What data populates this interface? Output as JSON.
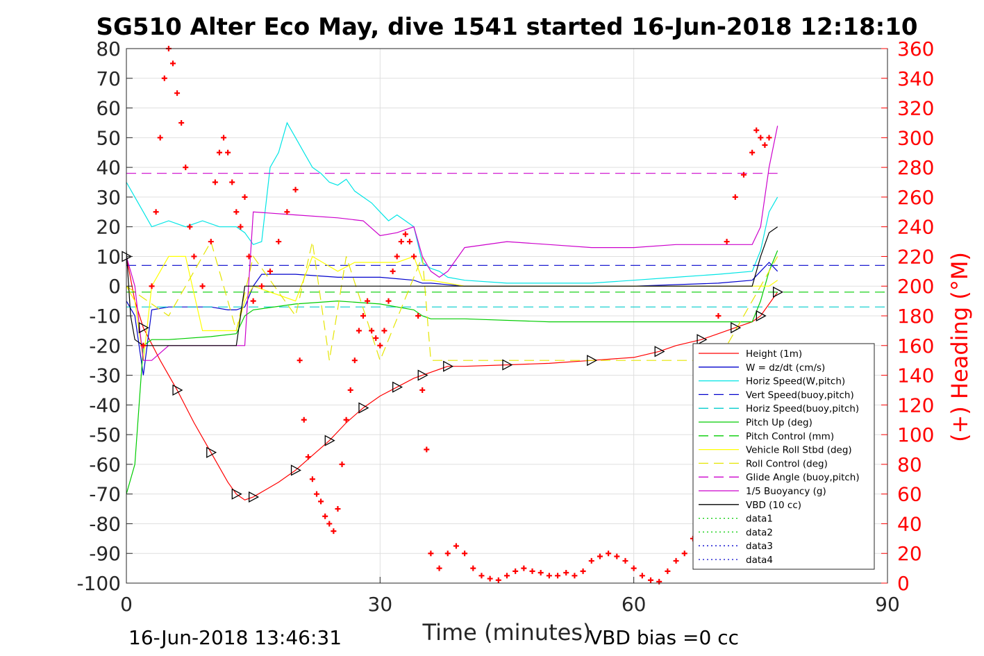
{
  "chart_data": {
    "type": "line",
    "title": "SG510 Alter Eco May, dive 1541 started 16-Jun-2018 12:18:10",
    "xlabel": "Time (minutes)",
    "ylabel_right": "(+) Heading (°M)",
    "xlim": [
      0,
      90
    ],
    "ylim": [
      -100,
      80
    ],
    "ylim_right": [
      0,
      360
    ],
    "xticks": [
      "0",
      "30",
      "60",
      "90"
    ],
    "yticks": [
      "80",
      "70",
      "60",
      "50",
      "40",
      "30",
      "20",
      "10",
      "0",
      "-10",
      "-20",
      "-30",
      "-40",
      "-50",
      "-60",
      "-70",
      "-80",
      "-90",
      "-100"
    ],
    "yticks_right": [
      "360",
      "340",
      "320",
      "300",
      "280",
      "260",
      "240",
      "220",
      "200",
      "180",
      "160",
      "140",
      "120",
      "100",
      "80",
      "60",
      "40",
      "20",
      "0"
    ],
    "grid": true,
    "legend_position": "bottom-right",
    "footer_left": "16-Jun-2018 13:46:31",
    "footer_right": "VBD bias =0 cc",
    "colors": {
      "height": "#ff0000",
      "w": "#0000cc",
      "horiz": "#00e5e5",
      "vert_buoy": "#0000cc",
      "horiz_buoy": "#00cccc",
      "pitch": "#00cc00",
      "pitch_ctrl": "#00cc00",
      "roll": "#ffff00",
      "roll_ctrl": "#e5e500",
      "glide": "#cc00cc",
      "buoy": "#cc00cc",
      "vbd": "#000000",
      "heading": "#ff0000",
      "right_axis": "#ff0000"
    },
    "legend": [
      {
        "key": "height",
        "label": "Height (1m)",
        "style": "solid",
        "color": "#ff0000"
      },
      {
        "key": "w",
        "label": "W = dz/dt (cm/s)",
        "style": "solid",
        "color": "#0000cc"
      },
      {
        "key": "horiz",
        "label": "Horiz Speed(W,pitch)",
        "style": "solid",
        "color": "#00e5e5"
      },
      {
        "key": "vert_buoy",
        "label": "Vert Speed(buoy,pitch)",
        "style": "dashed",
        "color": "#0000cc"
      },
      {
        "key": "horiz_buoy",
        "label": "Horiz Speed(buoy,pitch)",
        "style": "dashed",
        "color": "#00cccc"
      },
      {
        "key": "pitch",
        "label": "Pitch Up (deg)",
        "style": "solid",
        "color": "#00cc00"
      },
      {
        "key": "pitch_ctrl",
        "label": "Pitch Control (mm)",
        "style": "dashed",
        "color": "#00cc00"
      },
      {
        "key": "roll",
        "label": "Vehicle Roll Stbd (deg)",
        "style": "solid",
        "color": "#ffff00"
      },
      {
        "key": "roll_ctrl",
        "label": "Roll Control (deg)",
        "style": "dashed",
        "color": "#e5e500"
      },
      {
        "key": "glide",
        "label": "Glide Angle (buoy,pitch)",
        "style": "dashed",
        "color": "#cc00cc"
      },
      {
        "key": "buoy",
        "label": "1/5 Buoyancy (g)",
        "style": "solid",
        "color": "#cc00cc"
      },
      {
        "key": "vbd",
        "label": "VBD (10 cc)",
        "style": "solid",
        "color": "#000000"
      },
      {
        "key": "data1",
        "label": "data1",
        "style": "dotted",
        "color": "#00cc00"
      },
      {
        "key": "data2",
        "label": "data2",
        "style": "dotted",
        "color": "#00cc00"
      },
      {
        "key": "data3",
        "label": "data3",
        "style": "dotted",
        "color": "#0000cc"
      },
      {
        "key": "data4",
        "label": "data4",
        "style": "dotted",
        "color": "#0000cc"
      }
    ],
    "series": [
      {
        "key": "height",
        "x": [
          0,
          1,
          2,
          4,
          6,
          8,
          10,
          12,
          13,
          14,
          15,
          18,
          20,
          22,
          24,
          26,
          28,
          30,
          32,
          34,
          35,
          36,
          38,
          40,
          45,
          50,
          55,
          60,
          63,
          65,
          68,
          70,
          72,
          74,
          75,
          76,
          77
        ],
        "y": [
          10,
          -5,
          -14,
          -25,
          -35,
          -46,
          -56,
          -66,
          -70,
          -72,
          -71,
          -66,
          -62,
          -57,
          -52,
          -46,
          -41,
          -37,
          -34,
          -31,
          -30,
          -29,
          -27,
          -27,
          -26.5,
          -26,
          -25,
          -24,
          -22,
          -20,
          -18,
          -16,
          -14,
          -12,
          -10,
          -6,
          -2
        ]
      },
      {
        "key": "w",
        "x": [
          0,
          1,
          2,
          3,
          5,
          8,
          10,
          12,
          13,
          14,
          15,
          16,
          20,
          25,
          30,
          34,
          35,
          36,
          40,
          50,
          60,
          70,
          74,
          75,
          76,
          77
        ],
        "y": [
          -5,
          -10,
          -30,
          -8,
          -7,
          -7,
          -7,
          -8,
          -8,
          -7,
          0,
          4,
          4,
          3,
          3,
          2,
          1,
          1,
          0,
          0,
          0,
          1,
          2,
          5,
          8,
          5
        ]
      },
      {
        "key": "horiz",
        "x": [
          0,
          1,
          2,
          3,
          5,
          7,
          9,
          11,
          13,
          14,
          15,
          16,
          17,
          18,
          19,
          20,
          21,
          22,
          23,
          24,
          25,
          26,
          27,
          28,
          29,
          30,
          31,
          32,
          33,
          34,
          35,
          36,
          37,
          38,
          40,
          45,
          50,
          55,
          60,
          65,
          70,
          74,
          75,
          76,
          77
        ],
        "y": [
          35,
          30,
          25,
          20,
          22,
          20,
          22,
          20,
          20,
          18,
          14,
          15,
          40,
          45,
          55,
          50,
          45,
          40,
          38,
          35,
          34,
          36,
          32,
          30,
          28,
          25,
          22,
          24,
          22,
          20,
          8,
          6,
          5,
          3,
          2,
          1,
          1,
          1,
          2,
          3,
          4,
          5,
          12,
          25,
          30
        ]
      },
      {
        "key": "vert_buoy",
        "x": [
          0,
          90
        ],
        "y": [
          7,
          7
        ]
      },
      {
        "key": "horiz_buoy",
        "x": [
          0,
          90
        ],
        "y": [
          -7,
          -7
        ]
      },
      {
        "key": "pitch",
        "x": [
          0,
          1,
          2,
          3,
          5,
          10,
          13,
          14,
          15,
          20,
          25,
          30,
          34,
          35,
          36,
          40,
          50,
          60,
          70,
          74,
          75,
          76,
          77
        ],
        "y": [
          -70,
          -60,
          -20,
          -18,
          -18,
          -17,
          -16,
          -10,
          -8,
          -6,
          -5,
          -6,
          -8,
          -10,
          -11,
          -11,
          -12,
          -12,
          -12,
          -12,
          -5,
          5,
          12
        ]
      },
      {
        "key": "pitch_ctrl",
        "x": [
          0,
          90
        ],
        "y": [
          -2,
          -2
        ]
      },
      {
        "key": "roll",
        "x": [
          0,
          1,
          2,
          3,
          4,
          5,
          7,
          9,
          10,
          12,
          13,
          14,
          15,
          20,
          22,
          25,
          27,
          30,
          32,
          34,
          35,
          36,
          40,
          50,
          60,
          70,
          74,
          75,
          76,
          77
        ],
        "y": [
          0,
          -5,
          -25,
          0,
          5,
          10,
          10,
          -15,
          -15,
          -15,
          -15,
          -5,
          0,
          -5,
          10,
          5,
          8,
          8,
          8,
          10,
          2,
          2,
          0,
          0,
          0,
          0,
          0,
          0,
          0,
          2
        ]
      },
      {
        "key": "roll_ctrl",
        "x": [
          0,
          5,
          10,
          13,
          15,
          20,
          22,
          24,
          26,
          30,
          35,
          36,
          45,
          55,
          65,
          70,
          74,
          77
        ],
        "y": [
          0,
          -10,
          15,
          -15,
          10,
          -10,
          15,
          -25,
          10,
          -25,
          10,
          -25,
          -25,
          -25,
          -25,
          -25,
          -5,
          10
        ]
      },
      {
        "key": "glide",
        "x": [
          0,
          1,
          2,
          5,
          10,
          13,
          14,
          15,
          30,
          34,
          36,
          37,
          40,
          50,
          60,
          70,
          74,
          75,
          76,
          77
        ],
        "y": [
          38,
          38,
          38,
          38,
          38,
          38,
          38,
          38,
          38,
          38,
          38,
          38,
          38,
          38,
          38,
          38,
          38,
          38,
          38,
          38
        ]
      },
      {
        "key": "buoy",
        "x": [
          0,
          1,
          2,
          3,
          5,
          10,
          13,
          14,
          15,
          20,
          25,
          28,
          30,
          32,
          34,
          35,
          36,
          37,
          38,
          40,
          45,
          50,
          55,
          60,
          65,
          70,
          74,
          75,
          76,
          77
        ],
        "y": [
          10,
          0,
          -25,
          -25,
          -20,
          -20,
          -20,
          -20,
          25,
          24,
          23,
          22,
          17,
          18,
          20,
          10,
          5,
          3,
          5,
          13,
          15,
          14,
          13,
          13,
          14,
          14,
          14,
          20,
          40,
          54
        ]
      },
      {
        "key": "vbd",
        "x": [
          0,
          0.5,
          1,
          2,
          13,
          13.5,
          14,
          74,
          75,
          76,
          77
        ],
        "y": [
          12,
          -10,
          -18,
          -20,
          -20,
          -10,
          0,
          0,
          10,
          18,
          20
        ]
      }
    ],
    "heading_points": {
      "x": [
        2,
        3,
        3.5,
        4,
        4.5,
        5,
        5.5,
        6,
        6.5,
        7,
        7.5,
        8,
        9,
        10,
        10.5,
        11,
        11.5,
        12,
        12.5,
        13,
        13.5,
        14,
        14.5,
        15,
        16,
        17,
        18,
        19,
        20,
        20.5,
        21,
        21.5,
        22,
        22.5,
        23,
        23.5,
        24,
        24.5,
        25,
        25.5,
        26,
        26.5,
        27,
        27.5,
        28,
        28.5,
        29,
        29.5,
        30,
        30.5,
        31,
        31.5,
        32,
        32.5,
        33,
        33.5,
        34,
        34.5,
        35,
        35.5,
        36,
        37,
        38,
        39,
        40,
        41,
        42,
        43,
        44,
        45,
        46,
        47,
        48,
        49,
        50,
        51,
        52,
        53,
        54,
        55,
        56,
        57,
        58,
        59,
        60,
        61,
        62,
        63,
        64,
        65,
        66,
        67,
        68,
        69,
        70,
        71,
        72,
        73,
        74,
        74.5,
        75,
        75.5,
        76
      ],
      "y": [
        160,
        200,
        250,
        300,
        340,
        360,
        350,
        330,
        310,
        280,
        240,
        220,
        200,
        230,
        270,
        290,
        300,
        290,
        270,
        250,
        240,
        260,
        220,
        190,
        200,
        210,
        230,
        250,
        265,
        150,
        110,
        85,
        70,
        60,
        55,
        45,
        40,
        35,
        50,
        80,
        110,
        130,
        150,
        170,
        180,
        190,
        170,
        165,
        160,
        170,
        190,
        210,
        220,
        230,
        235,
        230,
        220,
        180,
        130,
        90,
        20,
        10,
        20,
        25,
        20,
        10,
        5,
        3,
        2,
        5,
        8,
        10,
        8,
        7,
        5,
        5,
        7,
        5,
        8,
        15,
        18,
        20,
        18,
        15,
        10,
        5,
        2,
        1,
        8,
        15,
        20,
        30,
        60,
        100,
        180,
        230,
        260,
        275,
        290,
        305,
        300,
        295,
        300
      ]
    }
  }
}
